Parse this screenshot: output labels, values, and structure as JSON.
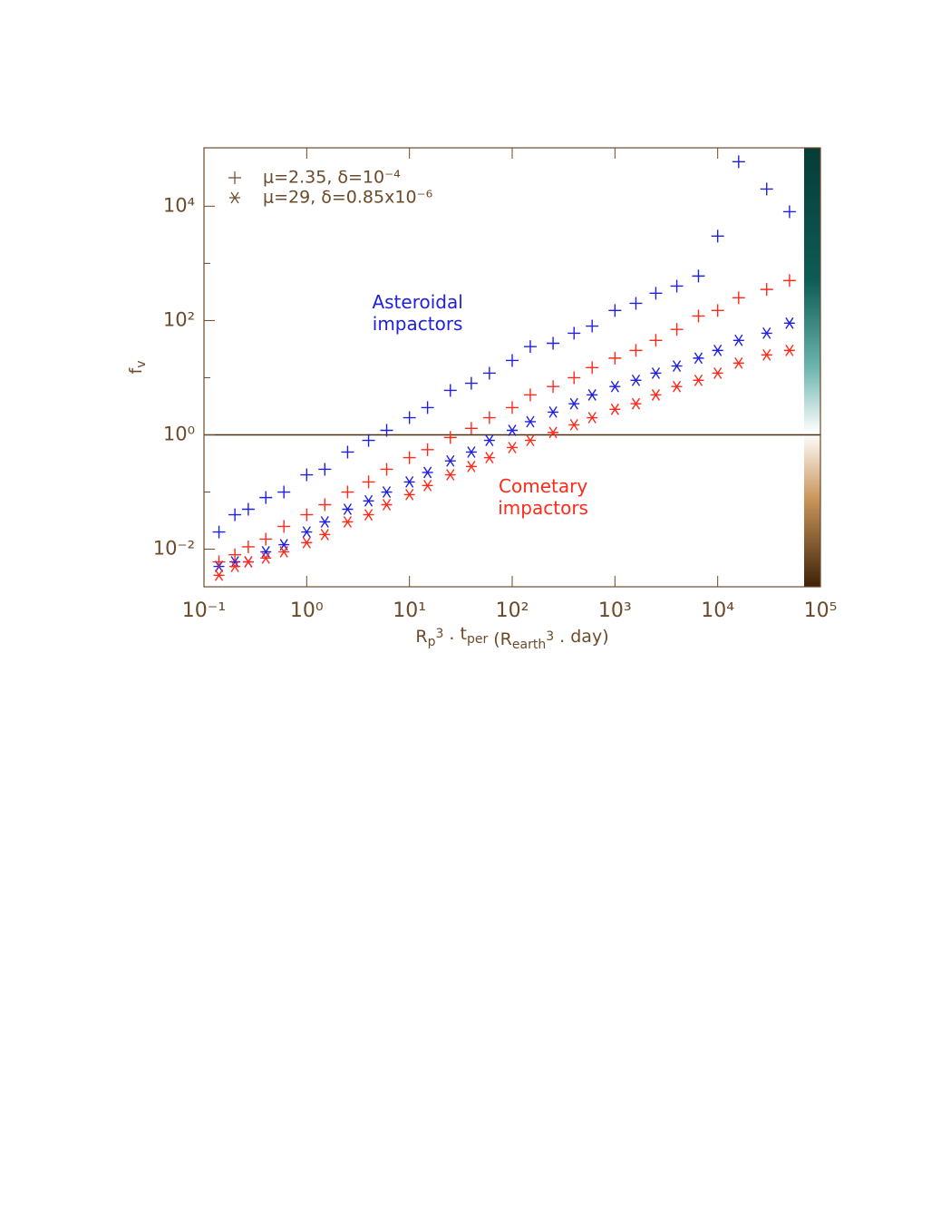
{
  "chart_data": {
    "type": "scatter",
    "xlog": true,
    "ylog": true,
    "xlim": [
      0.1,
      100000
    ],
    "ylim": [
      0.0022,
      105000
    ],
    "xticks": [
      {
        "value": 0.1,
        "label": "10⁻¹"
      },
      {
        "value": 1,
        "label": "10⁰"
      },
      {
        "value": 10,
        "label": "10¹"
      },
      {
        "value": 100,
        "label": "10²"
      },
      {
        "value": 1000,
        "label": "10³"
      },
      {
        "value": 10000,
        "label": "10⁴"
      },
      {
        "value": 100000,
        "label": "10⁵"
      }
    ],
    "yticks": [
      {
        "value": 0.01,
        "label": "10⁻²"
      },
      {
        "value": 1,
        "label": "10⁰"
      },
      {
        "value": 100,
        "label": "10²"
      },
      {
        "value": 10000,
        "label": "10⁴"
      }
    ],
    "yminor": [
      0.1,
      10,
      1000
    ],
    "hline": 1,
    "x_label_parts": [
      {
        "text": "R"
      },
      {
        "text": "p",
        "pos": "sub"
      },
      {
        "text": "3",
        "pos": "sup"
      },
      {
        "text": " . t"
      },
      {
        "text": "per",
        "pos": "sub"
      },
      {
        "text": "  (R"
      },
      {
        "text": "earth",
        "pos": "sub"
      },
      {
        "text": "3",
        "pos": "sup"
      },
      {
        "text": " . day)"
      }
    ],
    "y_label_parts": [
      {
        "text": "f"
      },
      {
        "text": "v",
        "pos": "sub"
      }
    ],
    "legend": [
      {
        "marker": "plus",
        "label": "μ=2.35, δ=10⁻⁴"
      },
      {
        "marker": "asterisk",
        "label": "μ=29, δ=0.85x10⁻⁶"
      }
    ],
    "annotations": [
      {
        "lines": [
          "Asteroidal",
          "impactors"
        ],
        "color": "#2020e0",
        "x": 12,
        "y": 200
      },
      {
        "lines": [
          "Cometary",
          "impactors"
        ],
        "color": "#ff2a1a",
        "x": 200,
        "y": 0.12
      }
    ],
    "series": [
      {
        "color": "#2020e0",
        "marker": "plus",
        "x": [
          0.14,
          0.2,
          0.27,
          0.4,
          0.6,
          1,
          1.5,
          2.5,
          4,
          6,
          10,
          15,
          25,
          40,
          60,
          100,
          150,
          250,
          400,
          600,
          1000,
          1600,
          2500,
          4000,
          6500,
          10000,
          16000,
          30000,
          50000
        ],
        "values": [
          0.02,
          0.04,
          0.05,
          0.08,
          0.1,
          0.2,
          0.25,
          0.5,
          0.8,
          1.2,
          2,
          3,
          6,
          8,
          12,
          20,
          35,
          40,
          60,
          80,
          150,
          200,
          300,
          400,
          600,
          3000,
          60000,
          20000,
          8000
        ]
      },
      {
        "color": "#2020e0",
        "marker": "asterisk",
        "x": [
          0.14,
          0.2,
          0.27,
          0.4,
          0.6,
          1,
          1.5,
          2.5,
          4,
          6,
          10,
          15,
          25,
          40,
          60,
          100,
          150,
          250,
          400,
          600,
          1000,
          1600,
          2500,
          4000,
          6500,
          10000,
          16000,
          30000,
          50000
        ],
        "values": [
          0.005,
          0.006,
          0.006,
          0.009,
          0.012,
          0.02,
          0.03,
          0.05,
          0.07,
          0.1,
          0.15,
          0.22,
          0.35,
          0.5,
          0.8,
          1.2,
          1.7,
          2.5,
          3.5,
          5,
          7,
          9,
          12,
          16,
          22,
          30,
          45,
          60,
          90
        ]
      },
      {
        "color": "#ff2a1a",
        "marker": "plus",
        "x": [
          0.14,
          0.2,
          0.27,
          0.4,
          0.6,
          1,
          1.5,
          2.5,
          4,
          6,
          10,
          15,
          25,
          40,
          60,
          100,
          150,
          250,
          400,
          600,
          1000,
          1600,
          2500,
          4000,
          6500,
          10000,
          16000,
          30000,
          50000
        ],
        "values": [
          0.006,
          0.008,
          0.011,
          0.015,
          0.025,
          0.04,
          0.06,
          0.1,
          0.15,
          0.25,
          0.4,
          0.55,
          0.9,
          1.3,
          2,
          3,
          5,
          7,
          10,
          15,
          22,
          30,
          45,
          70,
          120,
          150,
          250,
          350,
          500
        ]
      },
      {
        "color": "#ff2a1a",
        "marker": "asterisk",
        "x": [
          0.14,
          0.2,
          0.27,
          0.4,
          0.6,
          1,
          1.5,
          2.5,
          4,
          6,
          10,
          15,
          25,
          40,
          60,
          100,
          150,
          250,
          400,
          600,
          1000,
          1600,
          2500,
          4000,
          6500,
          10000,
          16000,
          30000,
          50000
        ],
        "values": [
          0.0035,
          0.005,
          0.006,
          0.007,
          0.009,
          0.013,
          0.018,
          0.03,
          0.04,
          0.06,
          0.09,
          0.13,
          0.2,
          0.28,
          0.4,
          0.6,
          0.8,
          1.1,
          1.5,
          2,
          2.8,
          3.5,
          5,
          7,
          9,
          12,
          18,
          25,
          30
        ]
      }
    ]
  }
}
